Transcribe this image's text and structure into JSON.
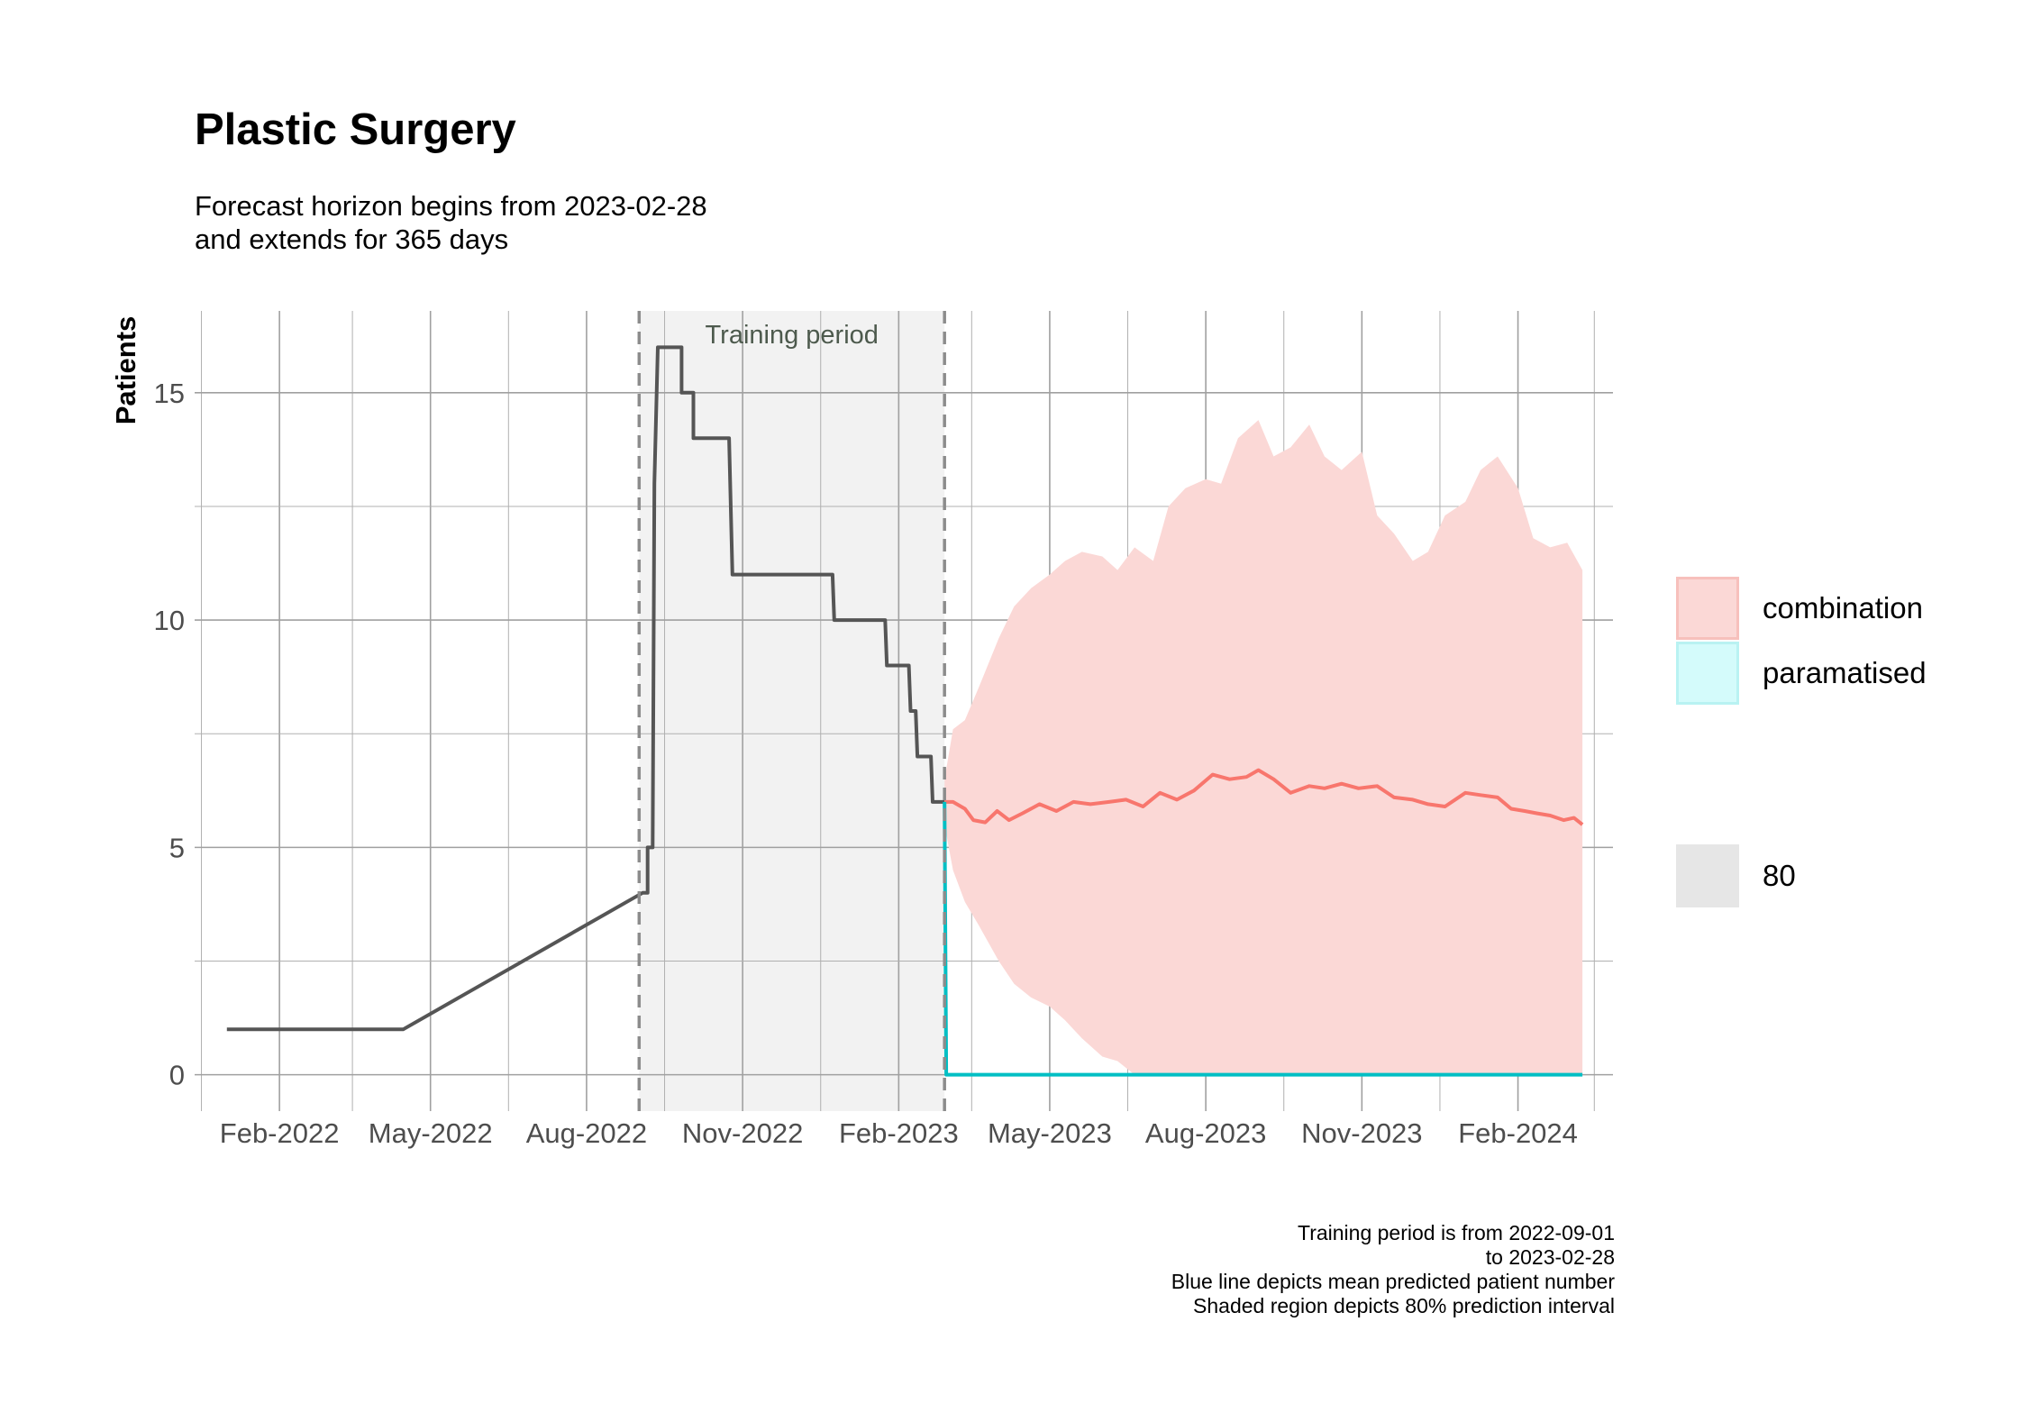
{
  "title": "Plastic Surgery",
  "subtitle_line1": "Forecast horizon begins from 2023-02-28",
  "subtitle_line2": "and extends for 365 days",
  "caption": {
    "line1": "Training period is from 2022-09-01",
    "line2": "to 2023-02-28",
    "line3": "Blue line depicts mean predicted patient number",
    "line4": "Shaded region depicts 80% prediction interval"
  },
  "legend": {
    "items": [
      {
        "label": "combination",
        "fill": "#fbd8d6",
        "border": "#f7c0bc"
      },
      {
        "label": "paramatised",
        "fill": "#d4fbfb",
        "border": "#b9f2f2"
      }
    ],
    "interval": {
      "label": "80",
      "fill": "#e6e6e6"
    }
  },
  "chart_data": {
    "type": "line",
    "ylabel": "Patients",
    "xlabel": "",
    "ylim": [
      -0.8,
      16.8
    ],
    "xlim": [
      "2021-12-13",
      "2024-03-28"
    ],
    "y_ticks": [
      0,
      5,
      10,
      15
    ],
    "y_tick_labels": [
      "0",
      "5",
      "10",
      "15"
    ],
    "x_ticks": [
      "2022-02-01",
      "2022-05-01",
      "2022-08-01",
      "2022-11-01",
      "2023-02-01",
      "2023-05-01",
      "2023-08-01",
      "2023-11-01",
      "2024-02-01"
    ],
    "x_tick_labels": [
      "Feb-2022",
      "May-2022",
      "Aug-2022",
      "Nov-2022",
      "Feb-2023",
      "May-2023",
      "Aug-2023",
      "Nov-2023",
      "Feb-2024"
    ],
    "grid": true,
    "legend_position": "right",
    "training_period": {
      "start": "2022-09-01",
      "end": "2023-02-28",
      "label": "Training period"
    },
    "series": [
      {
        "name": "actual",
        "color": "#555555",
        "points": [
          [
            "2022-01-01",
            1
          ],
          [
            "2022-04-15",
            1
          ],
          [
            "2022-09-03",
            4
          ],
          [
            "2022-09-06",
            4
          ],
          [
            "2022-09-06",
            5
          ],
          [
            "2022-09-09",
            5
          ],
          [
            "2022-09-10",
            13
          ],
          [
            "2022-09-12",
            16
          ],
          [
            "2022-09-26",
            16
          ],
          [
            "2022-09-26",
            15
          ],
          [
            "2022-10-03",
            15
          ],
          [
            "2022-10-03",
            14
          ],
          [
            "2022-10-24",
            14
          ],
          [
            "2022-10-26",
            11
          ],
          [
            "2022-12-24",
            11
          ],
          [
            "2022-12-25",
            10
          ],
          [
            "2023-01-24",
            10
          ],
          [
            "2023-01-25",
            9
          ],
          [
            "2023-02-07",
            9
          ],
          [
            "2023-02-08",
            8
          ],
          [
            "2023-02-11",
            8
          ],
          [
            "2023-02-12",
            7
          ],
          [
            "2023-02-20",
            7
          ],
          [
            "2023-02-21",
            6
          ],
          [
            "2023-02-28",
            6
          ]
        ]
      },
      {
        "name": "combination",
        "color": "#f8766d",
        "points": [
          [
            "2023-02-28",
            6.0
          ],
          [
            "2023-03-05",
            6.0
          ],
          [
            "2023-03-12",
            5.85
          ],
          [
            "2023-03-17",
            5.6
          ],
          [
            "2023-03-24",
            5.55
          ],
          [
            "2023-03-31",
            5.8
          ],
          [
            "2023-04-07",
            5.6
          ],
          [
            "2023-04-15",
            5.75
          ],
          [
            "2023-04-25",
            5.95
          ],
          [
            "2023-05-05",
            5.8
          ],
          [
            "2023-05-15",
            6.0
          ],
          [
            "2023-05-25",
            5.95
          ],
          [
            "2023-06-05",
            6.0
          ],
          [
            "2023-06-15",
            6.05
          ],
          [
            "2023-06-25",
            5.9
          ],
          [
            "2023-07-05",
            6.2
          ],
          [
            "2023-07-15",
            6.05
          ],
          [
            "2023-07-25",
            6.25
          ],
          [
            "2023-08-05",
            6.6
          ],
          [
            "2023-08-15",
            6.5
          ],
          [
            "2023-08-25",
            6.55
          ],
          [
            "2023-09-01",
            6.7
          ],
          [
            "2023-09-10",
            6.5
          ],
          [
            "2023-09-20",
            6.2
          ],
          [
            "2023-10-01",
            6.35
          ],
          [
            "2023-10-10",
            6.3
          ],
          [
            "2023-10-20",
            6.4
          ],
          [
            "2023-10-30",
            6.3
          ],
          [
            "2023-11-10",
            6.35
          ],
          [
            "2023-11-20",
            6.1
          ],
          [
            "2023-12-01",
            6.05
          ],
          [
            "2023-12-10",
            5.95
          ],
          [
            "2023-12-20",
            5.9
          ],
          [
            "2024-01-01",
            6.2
          ],
          [
            "2024-01-10",
            6.15
          ],
          [
            "2024-01-20",
            6.1
          ],
          [
            "2024-01-28",
            5.85
          ],
          [
            "2024-02-05",
            5.8
          ],
          [
            "2024-02-12",
            5.75
          ],
          [
            "2024-02-20",
            5.7
          ],
          [
            "2024-02-28",
            5.6
          ],
          [
            "2024-03-05",
            5.65
          ],
          [
            "2024-03-10",
            5.5
          ]
        ],
        "interval_80": {
          "x": [
            "2023-02-28",
            "2023-03-05",
            "2023-03-12",
            "2023-03-20",
            "2023-04-01",
            "2023-04-10",
            "2023-04-20",
            "2023-05-01",
            "2023-05-10",
            "2023-05-20",
            "2023-06-01",
            "2023-06-10",
            "2023-06-20",
            "2023-07-01",
            "2023-07-10",
            "2023-07-20",
            "2023-08-01",
            "2023-08-10",
            "2023-08-20",
            "2023-09-01",
            "2023-09-10",
            "2023-09-20",
            "2023-10-01",
            "2023-10-10",
            "2023-10-20",
            "2023-11-01",
            "2023-11-10",
            "2023-11-20",
            "2023-12-01",
            "2023-12-10",
            "2023-12-20",
            "2024-01-01",
            "2024-01-10",
            "2024-01-20",
            "2024-02-01",
            "2024-02-10",
            "2024-02-20",
            "2024-03-01",
            "2024-03-10"
          ],
          "upper": [
            6.5,
            7.6,
            7.8,
            8.5,
            9.6,
            10.3,
            10.7,
            11.0,
            11.3,
            11.5,
            11.4,
            11.1,
            11.6,
            11.3,
            12.5,
            12.9,
            13.1,
            13.0,
            14.0,
            14.4,
            13.6,
            13.8,
            14.3,
            13.6,
            13.3,
            13.7,
            12.3,
            11.9,
            11.3,
            11.5,
            12.3,
            12.6,
            13.3,
            13.6,
            12.9,
            11.8,
            11.6,
            11.7,
            11.1
          ],
          "lower": [
            5.5,
            4.5,
            3.8,
            3.3,
            2.5,
            2.0,
            1.7,
            1.5,
            1.2,
            0.8,
            0.4,
            0.3,
            0.0,
            0.0,
            0.0,
            0.0,
            0.0,
            0.0,
            0.0,
            0.0,
            0.0,
            0.0,
            0.0,
            0.0,
            0.0,
            0.0,
            0.0,
            0.0,
            0.0,
            0.0,
            0.0,
            0.0,
            0.0,
            0.0,
            0.0,
            0.0,
            0.0,
            0.0,
            0.0
          ],
          "fill": "#fbd8d6"
        }
      },
      {
        "name": "paramatised",
        "color": "#00bfc4",
        "points": [
          [
            "2023-02-28",
            6
          ],
          [
            "2023-03-01",
            0
          ],
          [
            "2024-03-10",
            0
          ]
        ]
      }
    ]
  }
}
